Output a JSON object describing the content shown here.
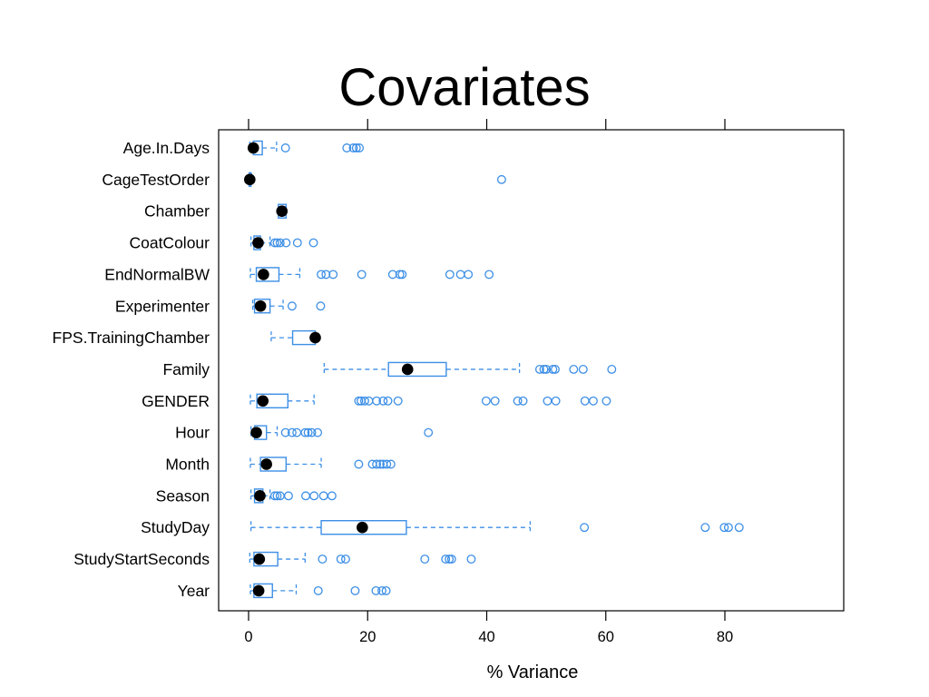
{
  "slide": {
    "title": "Covariates"
  },
  "colors": {
    "box": "#3d8fe6",
    "median": "#000000",
    "frame": "#000000"
  },
  "chart_data": {
    "type": "boxplot",
    "orientation": "horizontal",
    "xlabel": "% Variance",
    "ylabel": "",
    "xlim": [
      -5,
      100
    ],
    "x_ticks": [
      0,
      20,
      40,
      60,
      80
    ],
    "top_ticks": [
      0,
      20,
      40,
      60,
      80
    ],
    "grid": false,
    "categories": [
      {
        "name": "Age.In.Days",
        "whisker_low": 0.2,
        "q1": 0.8,
        "median": 0.8,
        "q3": 2.3,
        "whisker_high": 4.7,
        "outliers": [
          6.2,
          16.5,
          17.6,
          18.1,
          18.6
        ]
      },
      {
        "name": "CageTestOrder",
        "whisker_low": 0.1,
        "q1": 0.1,
        "median": 0.2,
        "q3": 0.4,
        "whisker_high": 0.5,
        "outliers": [
          42.5
        ]
      },
      {
        "name": "Chamber",
        "whisker_low": 5.0,
        "q1": 5.0,
        "median": 5.6,
        "q3": 6.3,
        "whisker_high": 6.3,
        "outliers": []
      },
      {
        "name": "CoatColour",
        "whisker_low": 0.4,
        "q1": 0.9,
        "median": 1.6,
        "q3": 2.0,
        "whisker_high": 3.6,
        "outliers": [
          4.4,
          4.8,
          5.3,
          6.3,
          8.2,
          10.9
        ]
      },
      {
        "name": "EndNormalBW",
        "whisker_low": 0.3,
        "q1": 1.3,
        "median": 2.5,
        "q3": 5.1,
        "whisker_high": 8.6,
        "outliers": [
          12.2,
          13.0,
          14.2,
          19.0,
          24.2,
          25.4,
          25.8,
          33.8,
          35.6,
          36.9,
          40.4
        ]
      },
      {
        "name": "Experimenter",
        "whisker_low": 0.7,
        "q1": 1.0,
        "median": 2.0,
        "q3": 3.6,
        "whisker_high": 5.8,
        "outliers": [
          7.3,
          12.1
        ]
      },
      {
        "name": "FPS.TrainingChamber",
        "whisker_low": 3.8,
        "q1": 7.4,
        "median": 11.2,
        "q3": 11.2,
        "whisker_high": 11.2,
        "outliers": []
      },
      {
        "name": "Family",
        "whisker_low": 12.7,
        "q1": 23.5,
        "median": 26.7,
        "q3": 33.2,
        "whisker_high": 45.5,
        "outliers": [
          48.9,
          49.6,
          50.0,
          51.1,
          51.5,
          54.6,
          56.2,
          61.0
        ]
      },
      {
        "name": "GENDER",
        "whisker_low": 0.3,
        "q1": 1.4,
        "median": 2.4,
        "q3": 6.6,
        "whisker_high": 11.0,
        "outliers": [
          18.5,
          18.9,
          19.5,
          20.2,
          21.5,
          22.6,
          23.4,
          25.1,
          39.9,
          41.4,
          45.2,
          46.1,
          50.2,
          51.6,
          56.5,
          57.9,
          60.1
        ]
      },
      {
        "name": "Hour",
        "whisker_low": 0.4,
        "q1": 1.0,
        "median": 1.3,
        "q3": 3.0,
        "whisker_high": 4.8,
        "outliers": [
          6.2,
          7.3,
          8.1,
          9.5,
          10.0,
          10.6,
          11.6,
          30.2
        ]
      },
      {
        "name": "Month",
        "whisker_low": 0.3,
        "q1": 2.0,
        "median": 3.0,
        "q3": 6.3,
        "whisker_high": 12.2,
        "outliers": [
          18.5,
          20.8,
          21.5,
          22.1,
          22.6,
          23.2,
          23.9
        ]
      },
      {
        "name": "Season",
        "whisker_low": 0.4,
        "q1": 1.0,
        "median": 1.9,
        "q3": 2.4,
        "whisker_high": 3.6,
        "outliers": [
          4.4,
          4.8,
          5.3,
          6.7,
          9.6,
          11.0,
          12.6,
          14.0
        ]
      },
      {
        "name": "StudyDay",
        "whisker_low": 0.4,
        "q1": 12.2,
        "median": 19.1,
        "q3": 26.5,
        "whisker_high": 47.3,
        "outliers": [
          56.4,
          76.7,
          79.9,
          80.6,
          82.4
        ]
      },
      {
        "name": "StudyStartSeconds",
        "whisker_low": 0.2,
        "q1": 0.9,
        "median": 1.8,
        "q3": 4.9,
        "whisker_high": 9.5,
        "outliers": [
          12.4,
          15.5,
          16.3,
          29.6,
          33.1,
          33.7,
          34.1,
          37.4
        ]
      },
      {
        "name": "Year",
        "whisker_low": 0.3,
        "q1": 0.9,
        "median": 1.7,
        "q3": 4.0,
        "whisker_high": 8.0,
        "outliers": [
          11.7,
          17.9,
          21.4,
          22.4,
          23.1
        ]
      }
    ]
  }
}
